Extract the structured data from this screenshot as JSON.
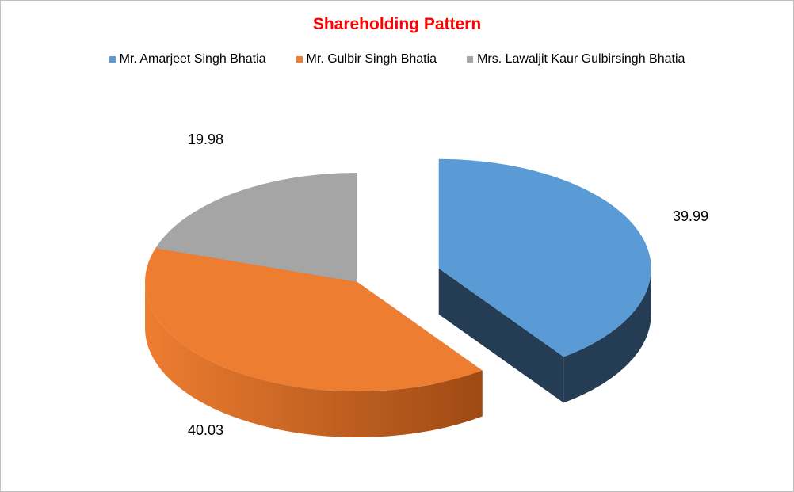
{
  "chart_data": {
    "type": "pie",
    "title": "Shareholding Pattern",
    "legend_position": "top",
    "exploded_slice": "Mr. Amarjeet Singh Bhatia",
    "style": "3d",
    "slices": [
      {
        "label": "Mr. Amarjeet Singh Bhatia",
        "value": 39.99,
        "value_label": "39.99",
        "color": "#5b9bd5",
        "side_color": "#243d55"
      },
      {
        "label": "Mr. Gulbir Singh Bhatia",
        "value": 40.03,
        "value_label": "40.03",
        "color": "#ed7d31",
        "side_color": "#9e4a14"
      },
      {
        "label": "Mrs. Lawaljit Kaur Gulbirsingh Bhatia",
        "value": 19.98,
        "value_label": "19.98",
        "color": "#a5a5a5",
        "side_color": "#404040"
      }
    ]
  }
}
